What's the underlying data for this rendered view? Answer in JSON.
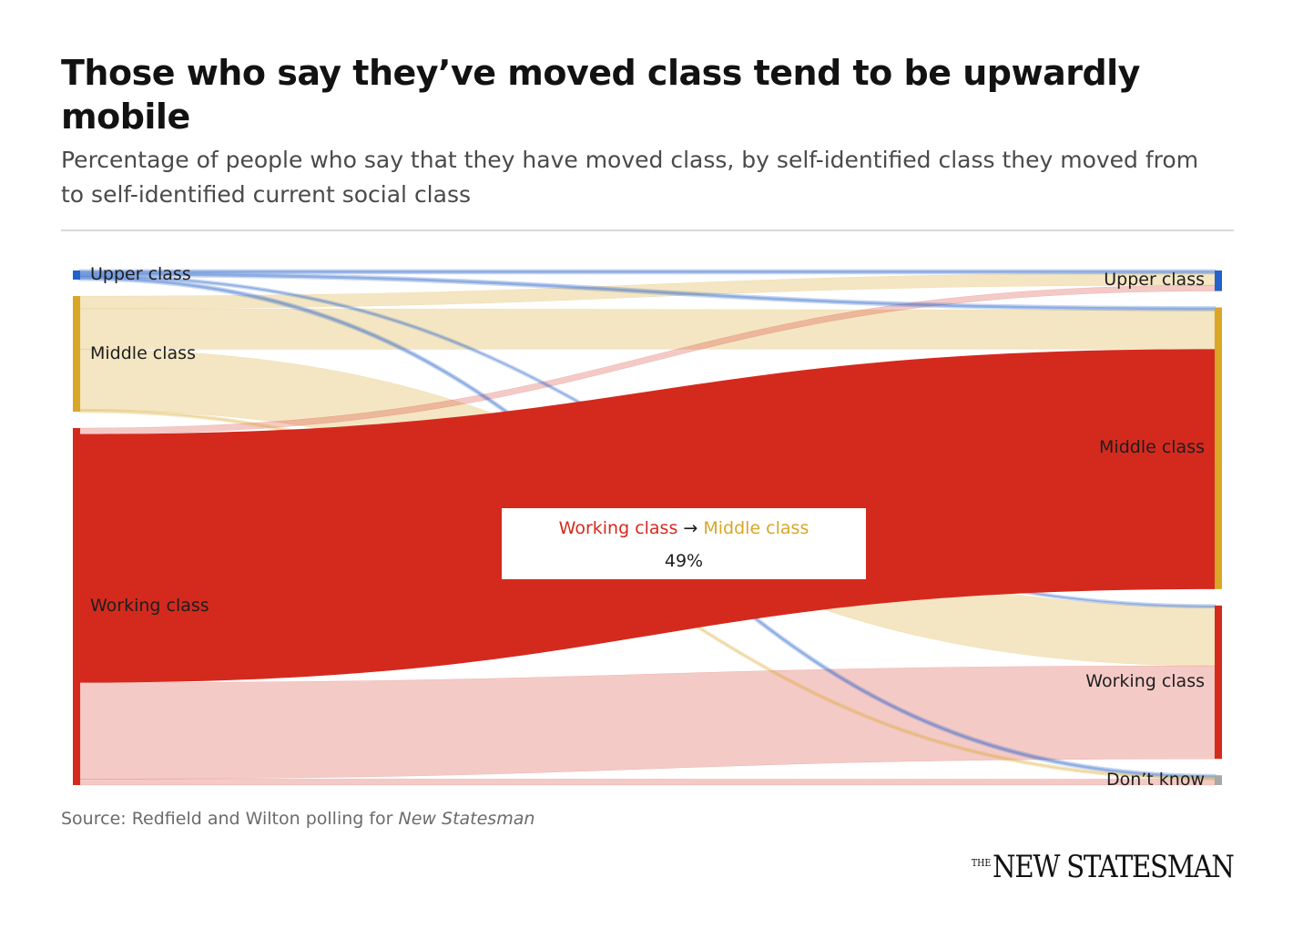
{
  "title": "Those who say they’ve moved class tend to be upwardly mobile",
  "subtitle": "Percentage of people who say that they have moved class, by self-identified class they moved from to self-identified current social class",
  "source_prefix": "Source: Redfield and Wilton polling for ",
  "source_publication": "New Statesman",
  "logo": {
    "the": "THE",
    "name": "NEW STATESMAN"
  },
  "tooltip": {
    "from": "Working class",
    "arrow": "→",
    "to": "Middle class",
    "value": "49%"
  },
  "colors": {
    "upper": "#2461c9",
    "middle": "#d9a628",
    "working": "#d42a1e",
    "dont_know": "#a8a8a8",
    "background": "#ffffff"
  },
  "chart_data": {
    "type": "sankey",
    "units": "percentage of people who say they have moved class",
    "highlighted_link": {
      "from": "Working class",
      "to": "Middle class"
    },
    "source_nodes": [
      {
        "name": "Upper class",
        "color_key": "upper"
      },
      {
        "name": "Middle class",
        "color_key": "middle"
      },
      {
        "name": "Working class",
        "color_key": "working"
      }
    ],
    "target_nodes": [
      {
        "name": "Upper class",
        "color_key": "upper"
      },
      {
        "name": "Middle class",
        "color_key": "middle"
      },
      {
        "name": "Working class",
        "color_key": "working"
      },
      {
        "name": "Don’t know",
        "color_key": "dont_know"
      }
    ],
    "links": [
      {
        "from": "Upper class",
        "to": "Upper class",
        "value": 0.5
      },
      {
        "from": "Upper class",
        "to": "Middle class",
        "value": 0.5
      },
      {
        "from": "Upper class",
        "to": "Working class",
        "value": 0.3
      },
      {
        "from": "Upper class",
        "to": "Don’t know",
        "value": 0.5
      },
      {
        "from": "Middle class",
        "to": "Upper class",
        "value": 2.5
      },
      {
        "from": "Middle class",
        "to": "Middle class",
        "value": 8
      },
      {
        "from": "Middle class",
        "to": "Working class",
        "value": 12
      },
      {
        "from": "Middle class",
        "to": "Don’t know",
        "value": 0.3
      },
      {
        "from": "Working class",
        "to": "Upper class",
        "value": 1.2
      },
      {
        "from": "Working class",
        "to": "Middle class",
        "value": 49
      },
      {
        "from": "Working class",
        "to": "Working class",
        "value": 19
      },
      {
        "from": "Working class",
        "to": "Don’t know",
        "value": 1.2
      }
    ]
  }
}
